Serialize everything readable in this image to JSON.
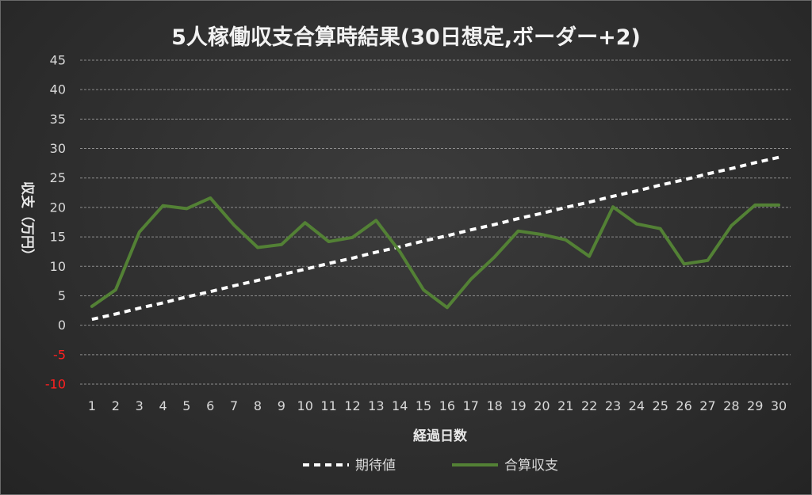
{
  "chart_data": {
    "type": "line",
    "title": "5人稼働収支合算時結果(30日想定,ボーダー+2)",
    "xlabel": "経過日数",
    "ylabel": "収支（万円）",
    "x": [
      1,
      2,
      3,
      4,
      5,
      6,
      7,
      8,
      9,
      10,
      11,
      12,
      13,
      14,
      15,
      16,
      17,
      18,
      19,
      20,
      21,
      22,
      23,
      24,
      25,
      26,
      27,
      28,
      29,
      30
    ],
    "ylim": [
      -10,
      45
    ],
    "yticks": [
      45,
      40,
      35,
      30,
      25,
      20,
      15,
      10,
      5,
      0,
      -5,
      -10
    ],
    "grid": true,
    "legend_position": "bottom",
    "series": [
      {
        "name": "期待値",
        "color": "#ffffff",
        "style": "dashed",
        "values": [
          1.0,
          1.9,
          2.9,
          3.8,
          4.8,
          5.7,
          6.7,
          7.6,
          8.6,
          9.5,
          10.5,
          11.4,
          12.4,
          13.3,
          14.3,
          15.2,
          16.2,
          17.1,
          18.1,
          19.0,
          20.0,
          20.9,
          21.9,
          22.8,
          23.8,
          24.7,
          25.7,
          26.6,
          27.6,
          28.5
        ]
      },
      {
        "name": "合算収支",
        "color": "#538135",
        "style": "solid",
        "values": [
          3.2,
          6.0,
          15.8,
          20.3,
          19.8,
          21.6,
          17.0,
          13.2,
          13.7,
          17.4,
          14.2,
          14.9,
          17.8,
          12.5,
          6.0,
          3.0,
          7.8,
          11.6,
          16.0,
          15.4,
          14.5,
          11.7,
          20.1,
          17.2,
          16.4,
          10.4,
          11.0,
          16.9,
          20.4,
          20.4
        ]
      }
    ]
  }
}
